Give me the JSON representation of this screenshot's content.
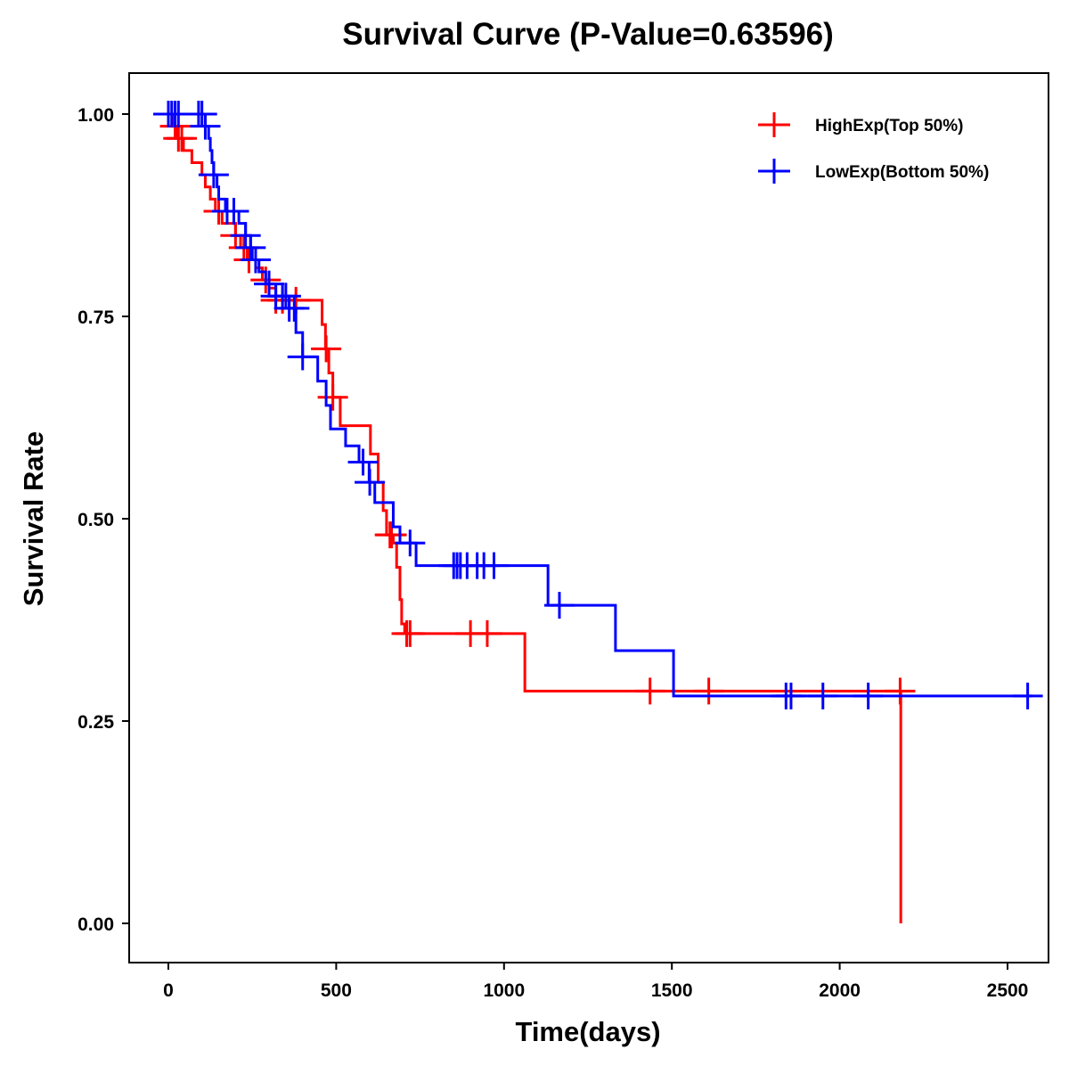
{
  "chart_data": {
    "type": "line",
    "title": "Survival Curve (P-Value=0.63596)",
    "xlabel": "Time(days)",
    "ylabel": "Survival Rate",
    "xlim": [
      -110,
      2630
    ],
    "ylim": [
      -0.048,
      1.05
    ],
    "xticks": [
      "0",
      "500",
      "1000",
      "1500",
      "2000",
      "2500"
    ],
    "yticks": [
      "0.00",
      "0.25",
      "0.50",
      "0.75",
      "1.00"
    ],
    "legend_position": "top-right",
    "grid": false,
    "series": [
      {
        "name": "HighExp(Top 50%)",
        "color": "#ff0000",
        "steps": [
          [
            0,
            1.0
          ],
          [
            15,
            0.985
          ],
          [
            25,
            0.97
          ],
          [
            45,
            0.955
          ],
          [
            70,
            0.94
          ],
          [
            100,
            0.925
          ],
          [
            110,
            0.91
          ],
          [
            125,
            0.895
          ],
          [
            140,
            0.88
          ],
          [
            160,
            0.865
          ],
          [
            200,
            0.85
          ],
          [
            215,
            0.835
          ],
          [
            235,
            0.82
          ],
          [
            260,
            0.81
          ],
          [
            280,
            0.795
          ],
          [
            300,
            0.785
          ],
          [
            320,
            0.77
          ],
          [
            458,
            0.74
          ],
          [
            468,
            0.71
          ],
          [
            478,
            0.68
          ],
          [
            490,
            0.65
          ],
          [
            512,
            0.615
          ],
          [
            602,
            0.58
          ],
          [
            625,
            0.545
          ],
          [
            640,
            0.51
          ],
          [
            650,
            0.48
          ],
          [
            670,
            0.47
          ],
          [
            680,
            0.44
          ],
          [
            690,
            0.4
          ],
          [
            695,
            0.37
          ],
          [
            704,
            0.358
          ],
          [
            1062,
            0.287
          ],
          [
            2182,
            0.0
          ]
        ],
        "end": 2182,
        "censored": [
          20,
          30,
          40,
          150,
          200,
          225,
          240,
          290,
          320,
          340,
          380,
          470,
          490,
          660,
          665,
          710,
          720,
          900,
          950,
          1435,
          1610,
          2180
        ]
      },
      {
        "name": "LowExp(Bottom 50%)",
        "color": "#0000ff",
        "steps": [
          [
            0,
            1.0
          ],
          [
            110,
            0.985
          ],
          [
            120,
            0.97
          ],
          [
            125,
            0.955
          ],
          [
            130,
            0.94
          ],
          [
            135,
            0.925
          ],
          [
            145,
            0.91
          ],
          [
            150,
            0.895
          ],
          [
            170,
            0.88
          ],
          [
            210,
            0.865
          ],
          [
            230,
            0.85
          ],
          [
            245,
            0.835
          ],
          [
            250,
            0.82
          ],
          [
            270,
            0.805
          ],
          [
            290,
            0.79
          ],
          [
            320,
            0.775
          ],
          [
            360,
            0.76
          ],
          [
            380,
            0.73
          ],
          [
            400,
            0.7
          ],
          [
            445,
            0.67
          ],
          [
            470,
            0.64
          ],
          [
            483,
            0.611
          ],
          [
            528,
            0.59
          ],
          [
            568,
            0.57
          ],
          [
            598,
            0.545
          ],
          [
            615,
            0.52
          ],
          [
            670,
            0.49
          ],
          [
            690,
            0.47
          ],
          [
            738,
            0.442
          ],
          [
            1131,
            0.393
          ],
          [
            1332,
            0.337
          ],
          [
            1505,
            0.281
          ]
        ],
        "end": 2575,
        "censored": [
          0,
          10,
          20,
          30,
          90,
          100,
          110,
          135,
          175,
          195,
          230,
          245,
          260,
          300,
          320,
          340,
          350,
          360,
          375,
          400,
          580,
          600,
          720,
          850,
          860,
          870,
          890,
          920,
          940,
          970,
          1165,
          1840,
          1855,
          1950,
          2085,
          2560
        ]
      }
    ]
  }
}
